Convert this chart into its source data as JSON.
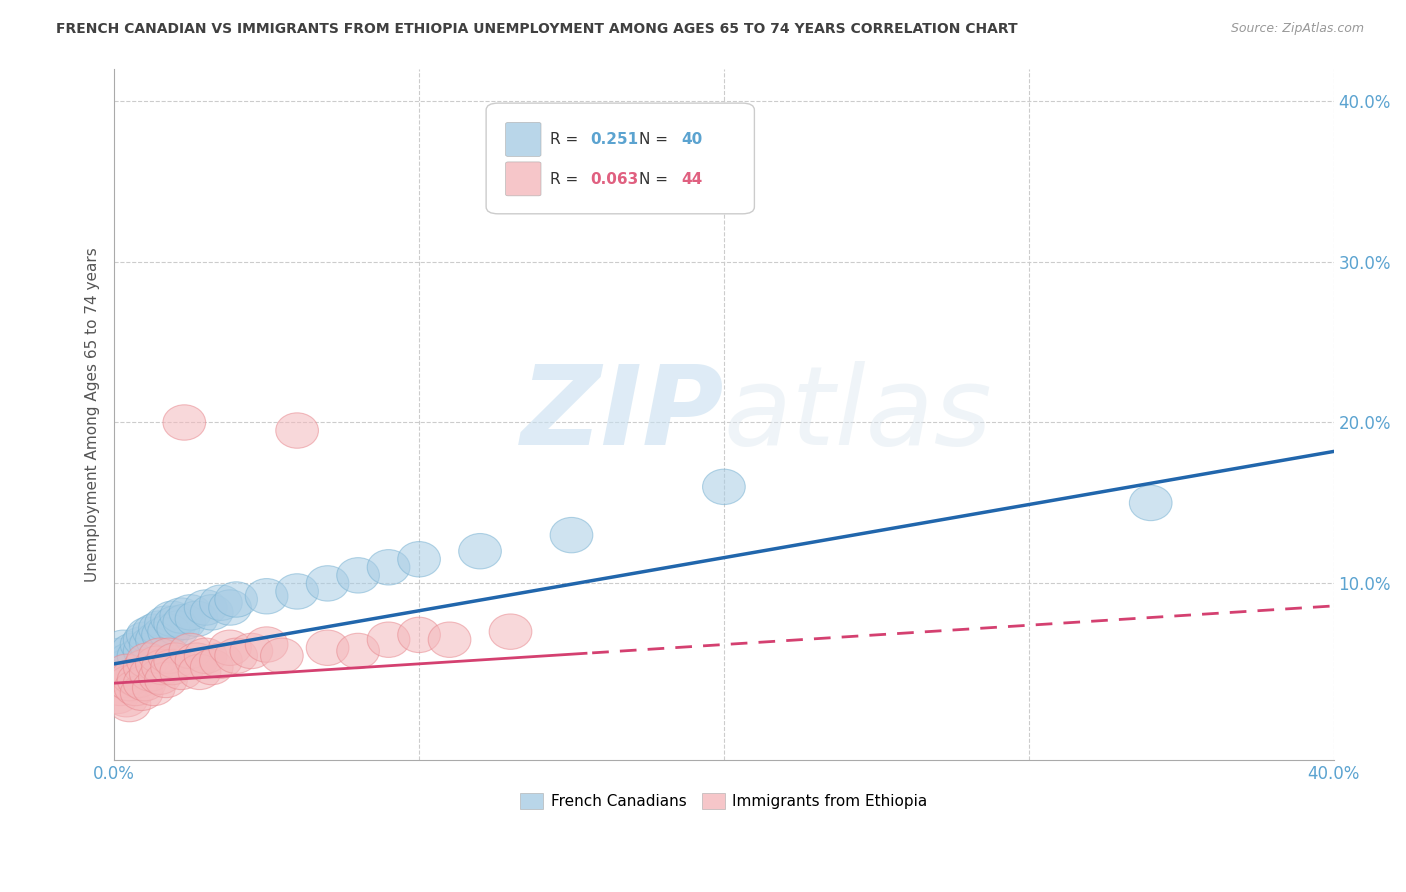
{
  "title": "FRENCH CANADIAN VS IMMIGRANTS FROM ETHIOPIA UNEMPLOYMENT AMONG AGES 65 TO 74 YEARS CORRELATION CHART",
  "source": "Source: ZipAtlas.com",
  "ylabel": "Unemployment Among Ages 65 to 74 years",
  "xlim": [
    0.0,
    0.4
  ],
  "ylim": [
    -0.01,
    0.42
  ],
  "blue_R": 0.251,
  "blue_N": 40,
  "pink_R": 0.063,
  "pink_N": 44,
  "blue_color": "#a8cce4",
  "blue_edge_color": "#7ab3d3",
  "pink_color": "#f4b8bc",
  "pink_edge_color": "#e88a90",
  "blue_line_color": "#2166ac",
  "pink_line_color": "#d44070",
  "pink_line_dash_color": "#d44070",
  "watermark_zip": "ZIP",
  "watermark_atlas": "atlas",
  "legend_label_blue": "French Canadians",
  "legend_label_pink": "Immigrants from Ethiopia",
  "blue_x": [
    0.001,
    0.002,
    0.003,
    0.004,
    0.005,
    0.006,
    0.008,
    0.009,
    0.01,
    0.01,
    0.011,
    0.012,
    0.013,
    0.014,
    0.015,
    0.016,
    0.017,
    0.018,
    0.019,
    0.02,
    0.021,
    0.022,
    0.023,
    0.025,
    0.027,
    0.03,
    0.032,
    0.035,
    0.038,
    0.04,
    0.05,
    0.06,
    0.07,
    0.08,
    0.09,
    0.1,
    0.12,
    0.15,
    0.2,
    0.34
  ],
  "blue_y": [
    0.05,
    0.055,
    0.06,
    0.048,
    0.052,
    0.058,
    0.055,
    0.062,
    0.058,
    0.065,
    0.068,
    0.062,
    0.07,
    0.065,
    0.072,
    0.068,
    0.075,
    0.07,
    0.078,
    0.075,
    0.072,
    0.08,
    0.076,
    0.082,
    0.078,
    0.085,
    0.082,
    0.088,
    0.085,
    0.09,
    0.092,
    0.095,
    0.1,
    0.105,
    0.11,
    0.115,
    0.12,
    0.13,
    0.16,
    0.15
  ],
  "pink_x": [
    0.001,
    0.002,
    0.003,
    0.004,
    0.004,
    0.005,
    0.005,
    0.006,
    0.007,
    0.008,
    0.009,
    0.01,
    0.01,
    0.011,
    0.012,
    0.013,
    0.014,
    0.015,
    0.015,
    0.016,
    0.017,
    0.018,
    0.019,
    0.02,
    0.022,
    0.023,
    0.025,
    0.027,
    0.028,
    0.03,
    0.032,
    0.035,
    0.038,
    0.04,
    0.045,
    0.05,
    0.055,
    0.06,
    0.07,
    0.08,
    0.09,
    0.1,
    0.11,
    0.13
  ],
  "pink_y": [
    0.03,
    0.035,
    0.04,
    0.028,
    0.045,
    0.025,
    0.038,
    0.042,
    0.035,
    0.04,
    0.032,
    0.048,
    0.038,
    0.052,
    0.044,
    0.035,
    0.05,
    0.042,
    0.055,
    0.048,
    0.04,
    0.055,
    0.048,
    0.052,
    0.045,
    0.2,
    0.058,
    0.052,
    0.045,
    0.055,
    0.048,
    0.052,
    0.06,
    0.055,
    0.058,
    0.062,
    0.055,
    0.195,
    0.06,
    0.058,
    0.065,
    0.068,
    0.065,
    0.07
  ],
  "background_color": "#ffffff",
  "grid_color": "#cccccc",
  "title_color": "#404040",
  "axis_label_color": "#555555",
  "tick_color": "#5ba3d0"
}
